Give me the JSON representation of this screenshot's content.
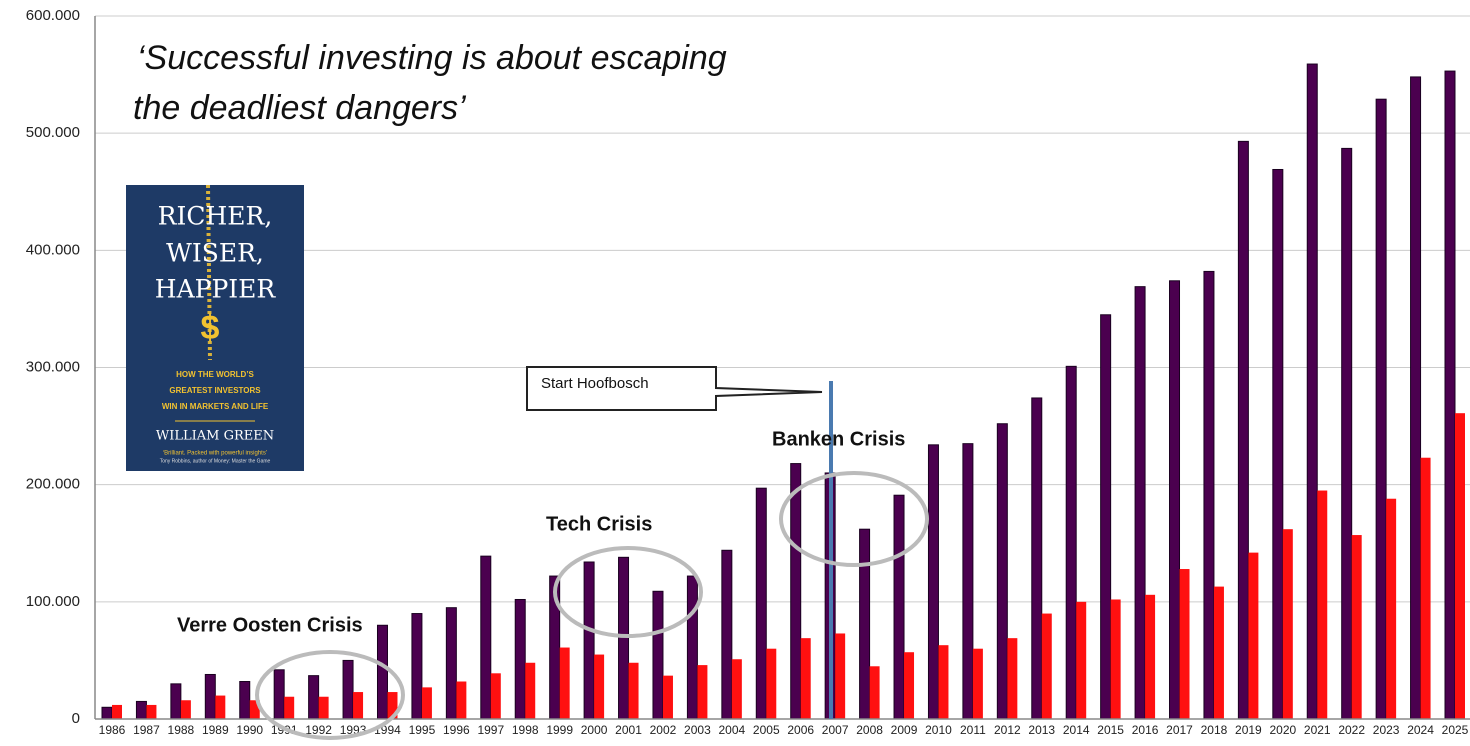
{
  "chart_data": {
    "type": "bar",
    "categories": [
      "1986",
      "1987",
      "1988",
      "1989",
      "1990",
      "1991",
      "1992",
      "1993",
      "1994",
      "1995",
      "1996",
      "1997",
      "1998",
      "1999",
      "2000",
      "2001",
      "2002",
      "2003",
      "2004",
      "2005",
      "2006",
      "2007",
      "2008",
      "2009",
      "2010",
      "2011",
      "2012",
      "2013",
      "2014",
      "2015",
      "2016",
      "2017",
      "2018",
      "2019",
      "2020",
      "2021",
      "2022",
      "2023",
      "2024",
      "2025"
    ],
    "series": [
      {
        "color": "#4b004f",
        "values": [
          10000,
          15000,
          30000,
          38000,
          32000,
          42000,
          37000,
          50000,
          80000,
          90000,
          95000,
          139000,
          102000,
          122000,
          134000,
          138000,
          109000,
          122000,
          144000,
          197000,
          218000,
          210000,
          162000,
          191000,
          234000,
          235000,
          252000,
          274000,
          301000,
          345000,
          369000,
          374000,
          382000,
          493000,
          469000,
          559000,
          487000,
          529000,
          548000,
          553000
        ]
      },
      {
        "color": "#ff1010",
        "values": [
          12000,
          12000,
          16000,
          20000,
          16000,
          19000,
          19000,
          23000,
          23000,
          27000,
          32000,
          39000,
          48000,
          61000,
          55000,
          48000,
          37000,
          46000,
          51000,
          60000,
          69000,
          73000,
          45000,
          57000,
          63000,
          60000,
          69000,
          90000,
          100000,
          102000,
          106000,
          128000,
          113000,
          142000,
          162000,
          195000,
          157000,
          188000,
          223000,
          261000
        ]
      }
    ],
    "ylim": [
      0,
      600000
    ],
    "yticks": [
      0,
      {
        "value": 100000,
        "label": "100.000"
      },
      {
        "value": 200000,
        "label": "200.000"
      },
      {
        "value": 300000,
        "label": "300.000"
      },
      {
        "value": 400000,
        "label": "400.000"
      },
      {
        "value": 500000,
        "label": "500.000"
      },
      {
        "value": 600000,
        "label": "600.000"
      }
    ],
    "grid": true,
    "quote": [
      "‘Successful investing is about escaping",
      "the deadliest dangers’"
    ],
    "annotations": [
      "Start Hoofbosch",
      "Banken Crisis",
      "Tech Crisis",
      "Verre Oosten Crisis"
    ]
  },
  "book_cover": {
    "title": [
      "RICHER,",
      "WISER,",
      "HAPPIER"
    ],
    "symbol": "$",
    "subtitle": [
      "HOW THE WORLD’S",
      "GREATEST INVESTORS",
      "WIN IN MARKETS AND LIFE"
    ],
    "author": "WILLIAM GREEN",
    "blurb": [
      "‘Brilliant. Packed with powerful insights’",
      "Tony Robbins, author of Money: Master the Game"
    ]
  }
}
